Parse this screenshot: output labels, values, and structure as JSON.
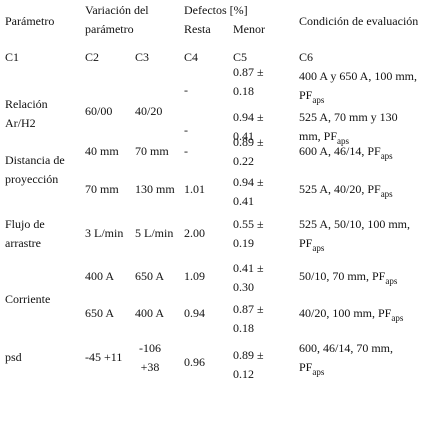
{
  "header": {
    "parametro": "Parámetro",
    "variacion": "Variación del parámetro",
    "defectos": "Defectos [%]",
    "resta": "Resta",
    "menor": "Menor",
    "condicion": "Condición de evaluación"
  },
  "codes": [
    "C1",
    "C2",
    "C3",
    "C4",
    "C5",
    "C6"
  ],
  "groups": [
    {
      "param": "Relación Ar/H2",
      "rows": [
        {
          "c2": "60/00",
          "c3": "40/20",
          "c4": "-",
          "c5": "0.87 ± 0.18",
          "c6": {
            "text": "400 A y 650 A, 100 mm, PF",
            "sub": "aps"
          }
        },
        {
          "c4": "-",
          "c5": "0.94 ± 0.41",
          "c6": {
            "text": "525 A, 70 mm y 130 mm, PF",
            "sub": "aps"
          }
        }
      ]
    },
    {
      "param": "Distancia de proyección",
      "rows": [
        {
          "c2": "40 mm",
          "c3": "70 mm",
          "c4": "-",
          "c5": "0.89 ± 0.22",
          "c6": {
            "text": "600 A, 46/14, PF",
            "sub": "aps"
          }
        },
        {
          "c2": "70 mm",
          "c3": "130 mm",
          "c4": "1.01",
          "c5": "0.94 ± 0.41",
          "c6": {
            "text": "525 A, 40/20, PF",
            "sub": "aps"
          }
        }
      ]
    },
    {
      "param": "Flujo de arrastre",
      "rows": [
        {
          "c2": "3 L/min",
          "c3": "5 L/min",
          "c4": "2.00",
          "c5": "0.55 ± 0.19",
          "c6": {
            "text": "525 A, 50/10, 100 mm, PF",
            "sub": "aps"
          }
        }
      ]
    },
    {
      "param": "Corriente",
      "rows": [
        {
          "c2": "400 A",
          "c3": "650 A",
          "c4": "1.09",
          "c5": "0.41 ± 0.30",
          "c6": {
            "text": "50/10, 70 mm, PF",
            "sub": "aps"
          }
        },
        {
          "c2": "650 A",
          "c3": "400 A",
          "c4": "0.94",
          "c5": "0.87 ± 0.18",
          "c6": {
            "text": "40/20, 100 mm, PF",
            "sub": "aps"
          }
        }
      ]
    },
    {
      "param": "psd",
      "rows": [
        {
          "c2": "-45 +11",
          "c3": "-106 +38",
          "c4": "0.96",
          "c5": "0.89 ± 0.12",
          "c6": {
            "text": "600, 46/14, 70 mm, PF",
            "sub": "aps"
          }
        }
      ]
    }
  ]
}
